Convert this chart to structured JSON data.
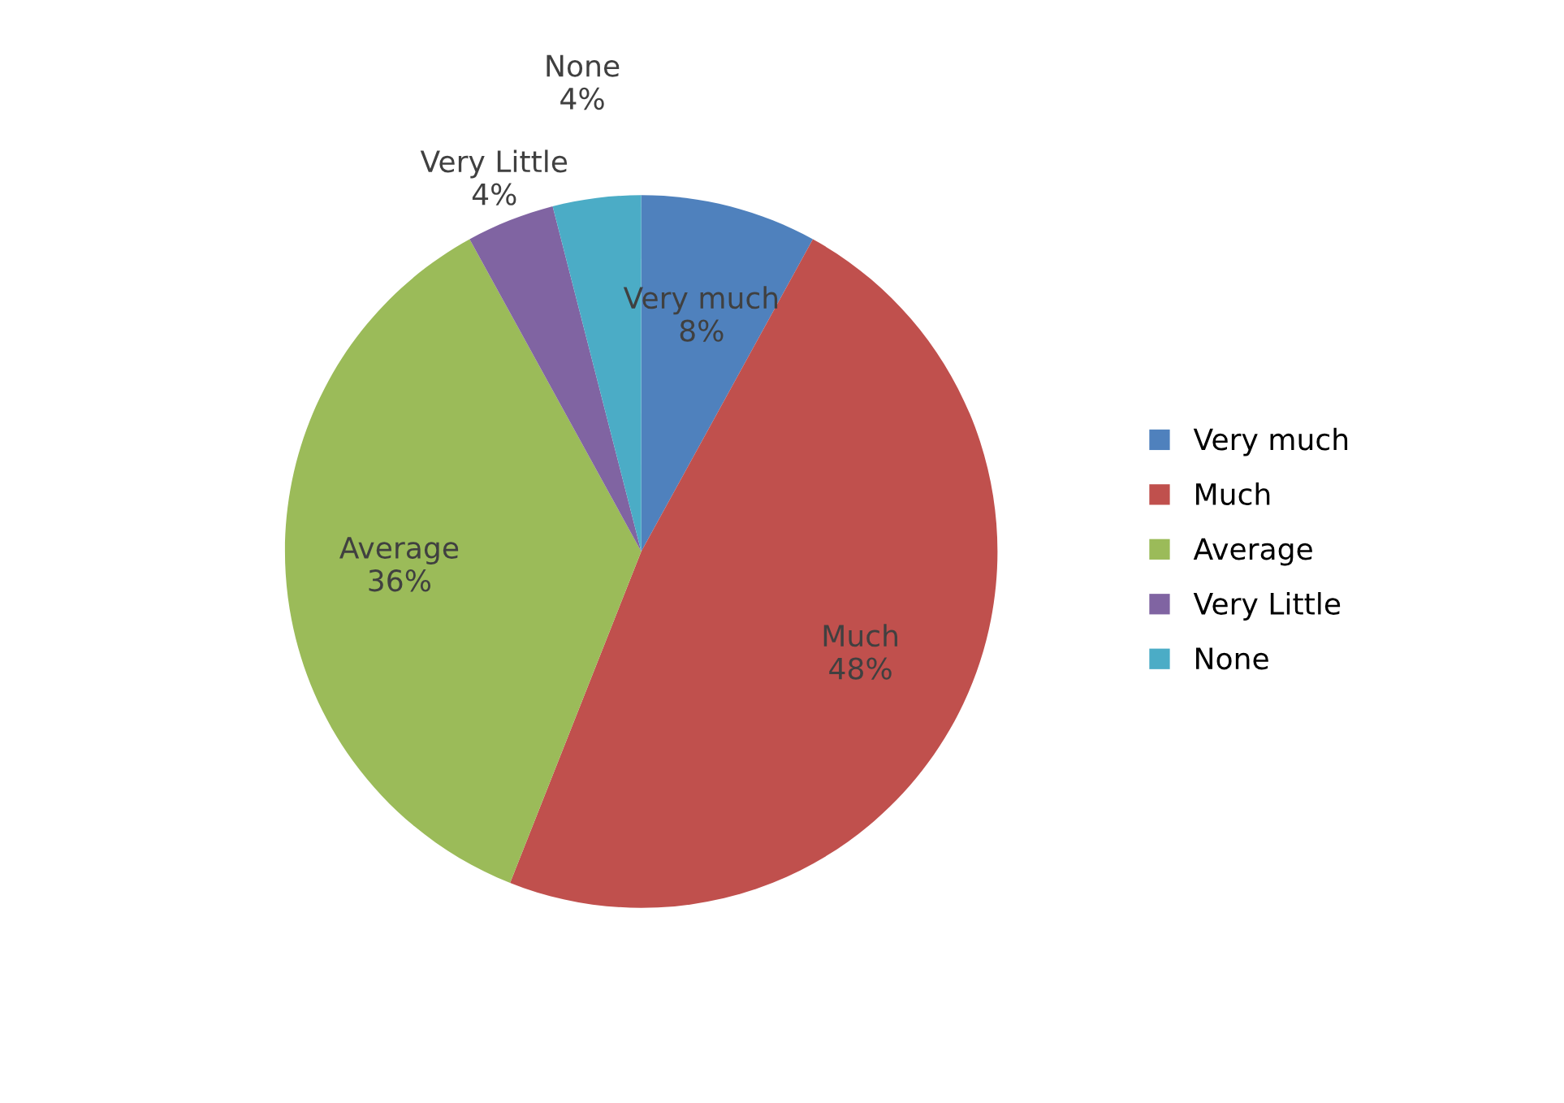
{
  "chart_data": {
    "type": "pie",
    "categories": [
      "Very much",
      "Much",
      "Average",
      "Very Little",
      "None"
    ],
    "values": [
      8,
      48,
      36,
      4,
      4
    ],
    "value_labels": [
      "8%",
      "48%",
      "36%",
      "4%",
      "4%"
    ],
    "colors": [
      "#4f81bd",
      "#c0504d",
      "#9bbb59",
      "#8064a2",
      "#4bacc6"
    ],
    "legend": "right"
  }
}
